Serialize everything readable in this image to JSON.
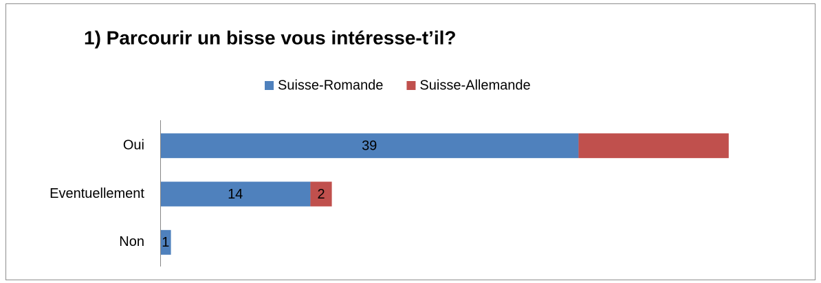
{
  "chart_data": {
    "type": "bar",
    "orientation": "horizontal",
    "stacked": true,
    "title": "1) Parcourir un bisse vous intéresse-t’il?",
    "categories": [
      "Oui",
      "Eventuellement",
      "Non"
    ],
    "series": [
      {
        "name": "Suisse-Romande",
        "color": "#4f81bd",
        "values": [
          39,
          14,
          1
        ],
        "show_labels": [
          true,
          true,
          true
        ]
      },
      {
        "name": "Suisse-Allemande",
        "color": "#c0504d",
        "values": [
          14,
          2,
          null
        ],
        "show_labels": [
          false,
          true,
          false
        ]
      }
    ],
    "xlim": [
      0,
      55
    ],
    "legend": "top"
  }
}
